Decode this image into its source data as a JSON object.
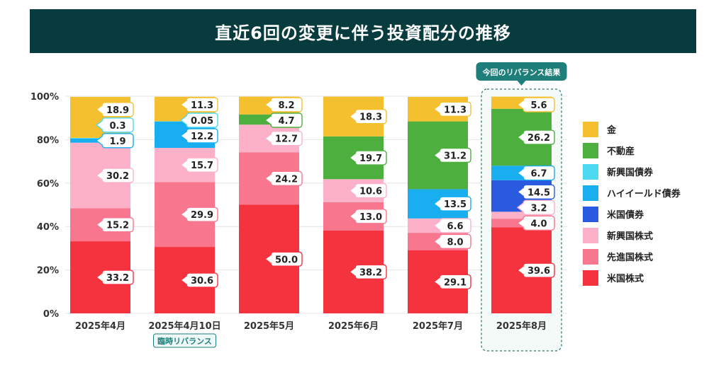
{
  "title": "直近6回の変更に伴う投資配分の推移",
  "highlight_label": "今回のリバランス結果",
  "extra_label": "臨時リバランス",
  "colors": {
    "金": "#f5c02f",
    "不動産": "#4caf3e",
    "新興国債券": "#4dd9f2",
    "ハイイールド債券": "#18aef0",
    "米国債券": "#2a5ae0",
    "新興国株式": "#fcb1c9",
    "先進国株式": "#f8768e",
    "米国株式": "#f5333f",
    "title_bg": "#073b3e",
    "highlight": "#1e7e79"
  },
  "chart_data": {
    "type": "bar",
    "stacked": true,
    "title": "直近6回の変更に伴う投資配分の推移",
    "categories": [
      "2025年4月",
      "2025年4月10日",
      "2025年5月",
      "2025年6月",
      "2025年7月",
      "2025年8月"
    ],
    "y_ticks": [
      "0%",
      "20%",
      "40%",
      "60%",
      "80%",
      "100%"
    ],
    "ylim": [
      0,
      100
    ],
    "grid": true,
    "legend_position": "right",
    "series": [
      {
        "name": "米国株式",
        "values": [
          33.2,
          30.6,
          50.0,
          38.2,
          29.1,
          39.6
        ]
      },
      {
        "name": "先進国株式",
        "values": [
          15.2,
          29.9,
          24.2,
          13.0,
          8.0,
          4.0
        ]
      },
      {
        "name": "新興国株式",
        "values": [
          30.2,
          15.7,
          12.7,
          10.6,
          6.6,
          3.2
        ]
      },
      {
        "name": "米国債券",
        "values": [
          0,
          0,
          0,
          0,
          0,
          14.5
        ]
      },
      {
        "name": "ハイイールド債券",
        "values": [
          1.9,
          12.2,
          0,
          0,
          13.5,
          6.7
        ]
      },
      {
        "name": "新興国債券",
        "values": [
          0.3,
          0.05,
          0,
          0,
          0,
          0
        ]
      },
      {
        "name": "不動産",
        "values": [
          0,
          0,
          4.7,
          19.7,
          31.2,
          26.2
        ]
      },
      {
        "name": "金",
        "values": [
          18.9,
          11.3,
          8.2,
          18.3,
          11.3,
          5.6
        ]
      }
    ],
    "data_labels": [
      [
        "33.2",
        "15.2",
        "30.2",
        "",
        "1.9",
        "0.3",
        "",
        "18.9"
      ],
      [
        "30.6",
        "29.9",
        "15.7",
        "",
        "12.2",
        "0.05",
        "",
        "11.3"
      ],
      [
        "50.0",
        "24.2",
        "12.7",
        "",
        "",
        "",
        "4.7",
        "8.2"
      ],
      [
        "38.2",
        "13.0",
        "10.6",
        "",
        "",
        "",
        "19.7",
        "18.3"
      ],
      [
        "29.1",
        "8.0",
        "6.6",
        "",
        "13.5",
        "",
        "31.2",
        "11.3"
      ],
      [
        "39.6",
        "4.0",
        "3.2",
        "14.5",
        "6.7",
        "",
        "26.2",
        "5.6"
      ]
    ],
    "legend": [
      "金",
      "不動産",
      "新興国債券",
      "ハイイールド債券",
      "米国債券",
      "新興国株式",
      "先進国株式",
      "米国株式"
    ]
  }
}
